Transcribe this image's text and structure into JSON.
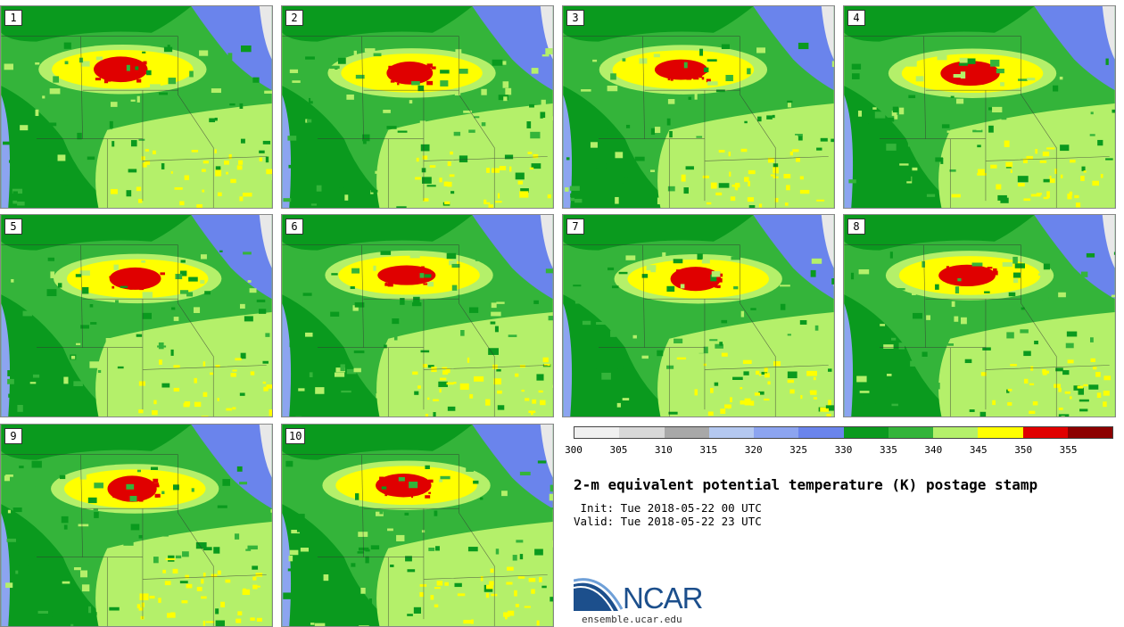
{
  "panels": [
    {
      "label": "1"
    },
    {
      "label": "2"
    },
    {
      "label": "3"
    },
    {
      "label": "4"
    },
    {
      "label": "5"
    },
    {
      "label": "6"
    },
    {
      "label": "7"
    },
    {
      "label": "8"
    },
    {
      "label": "9"
    },
    {
      "label": "10"
    }
  ],
  "colorbar": {
    "colors": [
      "#f0f0f0",
      "#d8d8d8",
      "#a8a8a8",
      "#b4c8f0",
      "#8ca4f0",
      "#6a84ec",
      "#0a9a1e",
      "#34b43a",
      "#b4f06a",
      "#ffff00",
      "#e00000",
      "#8c0000"
    ],
    "ticks": [
      "300",
      "305",
      "310",
      "315",
      "320",
      "325",
      "330",
      "335",
      "340",
      "345",
      "350",
      "355"
    ]
  },
  "title": "2-m equivalent potential temperature (K) postage stamp",
  "init_line": " Init: Tue 2018-05-22 00 UTC",
  "valid_line": "Valid: Tue 2018-05-22 23 UTC",
  "logo_text": "NCAR",
  "site": "ensemble.ucar.edu"
}
